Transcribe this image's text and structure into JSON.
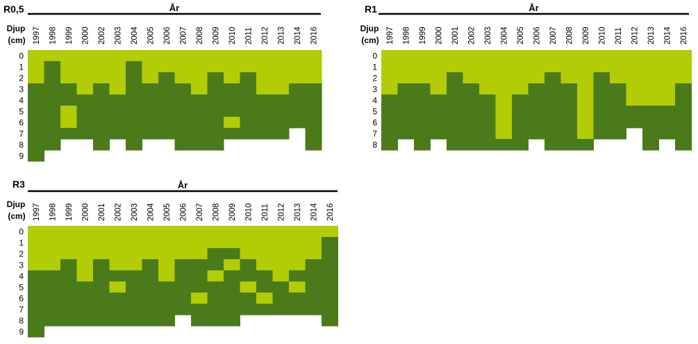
{
  "colors": {
    "light": "#b2cc06",
    "dark": "#4a7a1a",
    "empty": "#ffffff"
  },
  "chart_data": [
    {
      "type": "heatmap",
      "title": "R0,5",
      "header": "År",
      "ylabel": "Djup",
      "yunit": "(cm)",
      "years": [
        "1997",
        "1998",
        "1999",
        "2000",
        "2002",
        "2003",
        "2004",
        "2005",
        "2006",
        "2007",
        "2008",
        "2009",
        "2010",
        "2011",
        "2012",
        "2013",
        "2014",
        "2016"
      ],
      "depths": [
        "0",
        "1",
        "2",
        "3",
        "4",
        "5",
        "6",
        "7",
        "8",
        "9"
      ],
      "legend_codes": {
        "0": "no data",
        "1": "light green",
        "2": "dark green"
      },
      "grid": [
        [
          1,
          1,
          1,
          1,
          1,
          1,
          1,
          1,
          1,
          1,
          1,
          1,
          1,
          1,
          1,
          1,
          1,
          1
        ],
        [
          1,
          2,
          1,
          1,
          1,
          1,
          2,
          1,
          1,
          1,
          1,
          1,
          1,
          1,
          1,
          1,
          1,
          1
        ],
        [
          1,
          2,
          1,
          1,
          1,
          1,
          2,
          1,
          2,
          1,
          1,
          2,
          1,
          2,
          1,
          1,
          1,
          1
        ],
        [
          2,
          2,
          2,
          1,
          2,
          1,
          2,
          2,
          2,
          2,
          1,
          2,
          2,
          2,
          1,
          1,
          2,
          2
        ],
        [
          2,
          2,
          2,
          2,
          2,
          2,
          2,
          2,
          2,
          2,
          2,
          2,
          2,
          2,
          2,
          2,
          2,
          2
        ],
        [
          2,
          2,
          1,
          2,
          2,
          2,
          2,
          2,
          2,
          2,
          2,
          2,
          2,
          2,
          2,
          2,
          2,
          2
        ],
        [
          2,
          2,
          1,
          2,
          2,
          2,
          2,
          2,
          2,
          2,
          2,
          2,
          1,
          2,
          2,
          2,
          2,
          2
        ],
        [
          2,
          2,
          2,
          2,
          2,
          2,
          2,
          2,
          2,
          2,
          2,
          2,
          2,
          2,
          2,
          2,
          0,
          2
        ],
        [
          2,
          2,
          0,
          0,
          2,
          0,
          2,
          0,
          0,
          2,
          2,
          2,
          0,
          0,
          0,
          0,
          0,
          2
        ],
        [
          2,
          0,
          0,
          0,
          0,
          0,
          0,
          0,
          0,
          0,
          0,
          0,
          0,
          0,
          0,
          0,
          0,
          0
        ]
      ]
    },
    {
      "type": "heatmap",
      "title": "R1",
      "header": "År",
      "ylabel": "Djup",
      "yunit": "(cm)",
      "years": [
        "1997",
        "1998",
        "1999",
        "2000",
        "2001",
        "2002",
        "2003",
        "2004",
        "2005",
        "2006",
        "2007",
        "2008",
        "2009",
        "2010",
        "2011",
        "2012",
        "2013",
        "2014",
        "2016"
      ],
      "depths": [
        "0",
        "1",
        "2",
        "3",
        "4",
        "5",
        "6",
        "7",
        "8"
      ],
      "legend_codes": {
        "0": "no data",
        "1": "light green",
        "2": "dark green"
      },
      "grid": [
        [
          1,
          1,
          1,
          1,
          1,
          1,
          1,
          1,
          1,
          1,
          1,
          1,
          1,
          1,
          1,
          1,
          1,
          1,
          1
        ],
        [
          1,
          1,
          1,
          1,
          1,
          1,
          1,
          1,
          1,
          1,
          1,
          1,
          1,
          1,
          1,
          1,
          1,
          1,
          1
        ],
        [
          1,
          1,
          1,
          1,
          2,
          1,
          1,
          1,
          1,
          1,
          2,
          1,
          1,
          2,
          1,
          1,
          1,
          1,
          1
        ],
        [
          1,
          2,
          2,
          1,
          2,
          2,
          1,
          1,
          1,
          2,
          2,
          2,
          1,
          2,
          2,
          1,
          1,
          1,
          2
        ],
        [
          2,
          2,
          2,
          2,
          2,
          2,
          2,
          1,
          2,
          2,
          2,
          2,
          1,
          2,
          2,
          1,
          1,
          1,
          2
        ],
        [
          2,
          2,
          2,
          2,
          2,
          2,
          2,
          1,
          2,
          2,
          2,
          2,
          1,
          2,
          2,
          2,
          2,
          2,
          2
        ],
        [
          2,
          2,
          2,
          2,
          2,
          2,
          2,
          1,
          2,
          2,
          2,
          2,
          1,
          2,
          2,
          2,
          2,
          2,
          2
        ],
        [
          2,
          2,
          2,
          2,
          2,
          2,
          2,
          1,
          2,
          2,
          2,
          2,
          1,
          2,
          2,
          0,
          2,
          2,
          2
        ],
        [
          2,
          0,
          2,
          0,
          2,
          2,
          2,
          2,
          2,
          0,
          2,
          2,
          2,
          0,
          0,
          0,
          2,
          0,
          2
        ]
      ]
    },
    {
      "type": "heatmap",
      "title": "R3",
      "header": "År",
      "ylabel": "Djup",
      "yunit": "(cm)",
      "years": [
        "1997",
        "1998",
        "1999",
        "2000",
        "2001",
        "2002",
        "2003",
        "2004",
        "2005",
        "2006",
        "2007",
        "2008",
        "2009",
        "2010",
        "2011",
        "2012",
        "2013",
        "2014",
        "2016"
      ],
      "depths": [
        "0",
        "1",
        "2",
        "3",
        "4",
        "5",
        "6",
        "7",
        "8",
        "9"
      ],
      "legend_codes": {
        "0": "no data",
        "1": "light green",
        "2": "dark green"
      },
      "grid": [
        [
          1,
          1,
          1,
          1,
          1,
          1,
          1,
          1,
          1,
          1,
          1,
          1,
          1,
          1,
          1,
          1,
          1,
          1,
          1
        ],
        [
          1,
          1,
          1,
          1,
          1,
          1,
          1,
          1,
          1,
          1,
          1,
          1,
          1,
          1,
          1,
          1,
          1,
          1,
          2
        ],
        [
          1,
          1,
          1,
          1,
          1,
          1,
          1,
          1,
          1,
          1,
          1,
          2,
          2,
          1,
          1,
          1,
          1,
          1,
          2
        ],
        [
          1,
          1,
          2,
          1,
          2,
          1,
          1,
          2,
          1,
          2,
          2,
          2,
          1,
          2,
          1,
          1,
          1,
          2,
          2
        ],
        [
          2,
          2,
          2,
          1,
          2,
          2,
          2,
          2,
          1,
          2,
          2,
          1,
          2,
          2,
          2,
          1,
          2,
          2,
          2
        ],
        [
          2,
          2,
          2,
          2,
          2,
          1,
          2,
          2,
          2,
          2,
          2,
          2,
          2,
          1,
          2,
          2,
          1,
          2,
          2
        ],
        [
          2,
          2,
          2,
          2,
          2,
          2,
          2,
          2,
          2,
          2,
          1,
          2,
          2,
          2,
          1,
          2,
          2,
          2,
          2
        ],
        [
          2,
          2,
          2,
          2,
          2,
          2,
          2,
          2,
          2,
          2,
          2,
          2,
          2,
          2,
          2,
          2,
          2,
          2,
          2
        ],
        [
          2,
          2,
          2,
          2,
          2,
          2,
          2,
          2,
          2,
          0,
          2,
          2,
          2,
          0,
          0,
          0,
          0,
          0,
          2
        ],
        [
          2,
          0,
          0,
          0,
          0,
          0,
          0,
          0,
          0,
          0,
          0,
          0,
          0,
          0,
          0,
          0,
          0,
          0,
          0
        ]
      ]
    }
  ]
}
